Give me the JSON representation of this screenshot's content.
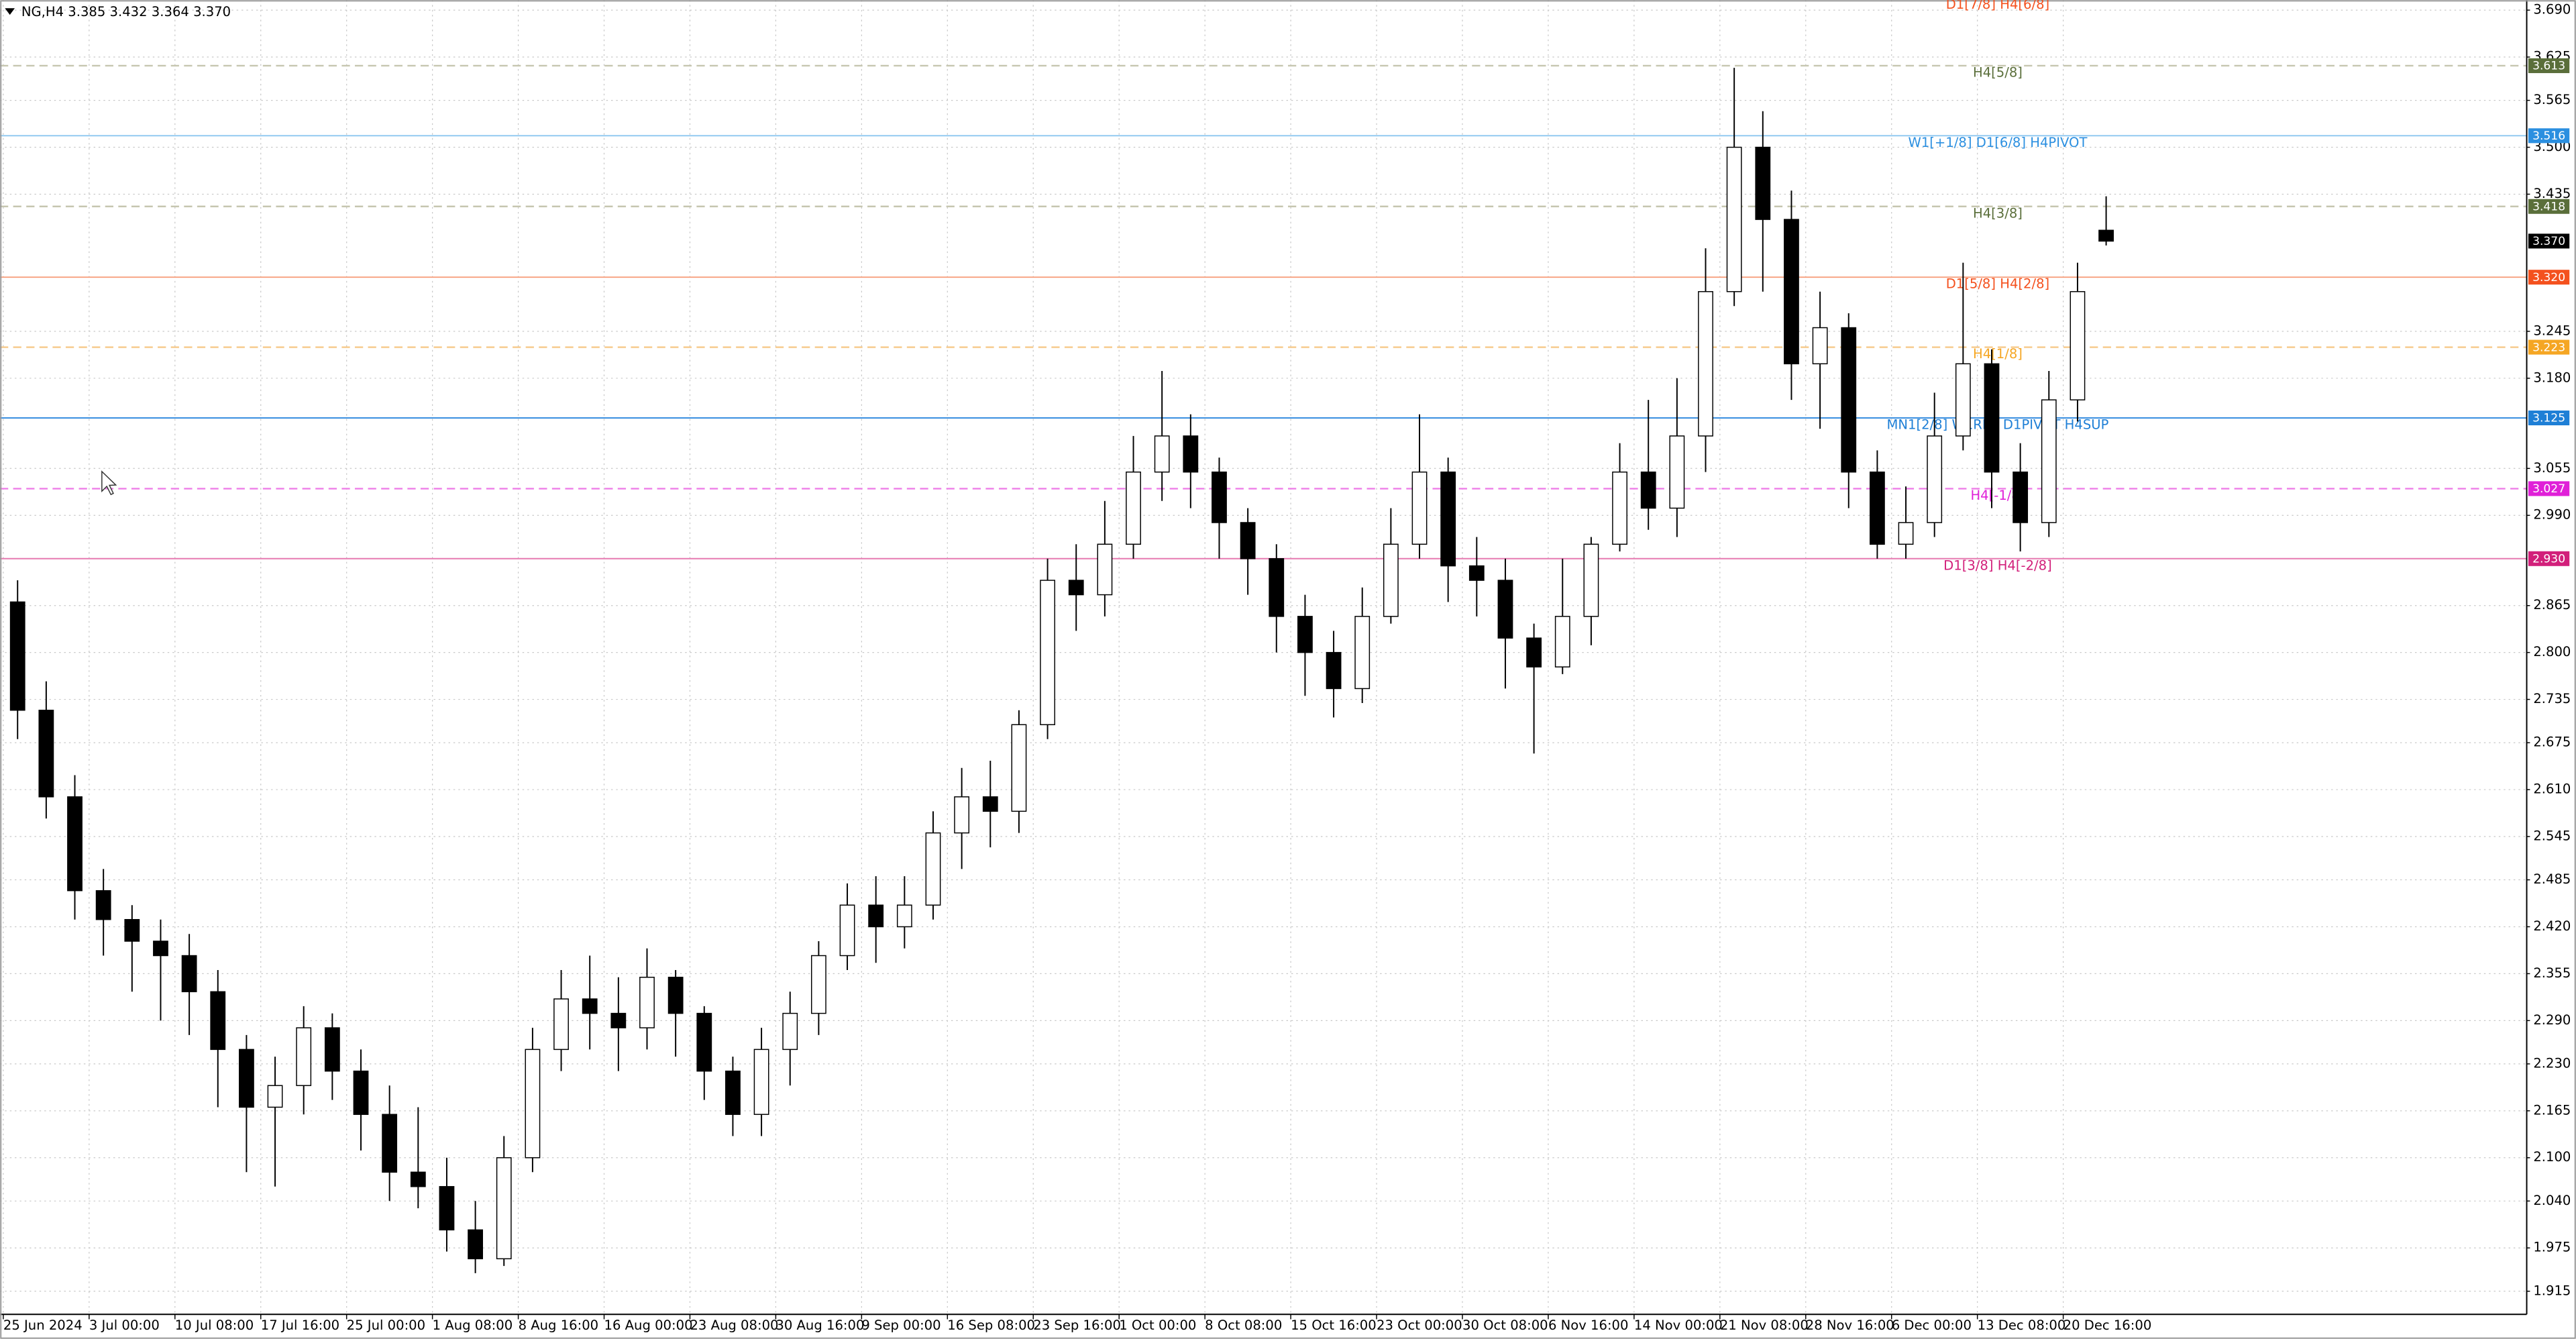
{
  "chart_data": {
    "type": "candlestick",
    "title": "NG,H4  3.385 3.432 3.364 3.370",
    "top_annotation": "D1[7/8] H4[6/8]",
    "up_color": "#ffffff",
    "down_color": "#000000",
    "grid": true,
    "xlim": [
      0,
      88.2
    ],
    "xticks": [
      {
        "value": 0,
        "label": "25 Jun 2024"
      },
      {
        "value": 3,
        "label": "3 Jul 00:00"
      },
      {
        "value": 6,
        "label": "10 Jul 08:00"
      },
      {
        "value": 9,
        "label": "17 Jul 16:00"
      },
      {
        "value": 12,
        "label": "25 Jul 00:00"
      },
      {
        "value": 15,
        "label": "1 Aug 08:00"
      },
      {
        "value": 18,
        "label": "8 Aug 16:00"
      },
      {
        "value": 21,
        "label": "16 Aug 00:00"
      },
      {
        "value": 24,
        "label": "23 Aug 08:00"
      },
      {
        "value": 27,
        "label": "30 Aug 16:00"
      },
      {
        "value": 30,
        "label": "9 Sep 00:00"
      },
      {
        "value": 33,
        "label": "16 Sep 08:00"
      },
      {
        "value": 36,
        "label": "23 Sep 16:00"
      },
      {
        "value": 39,
        "label": "1 Oct 00:00"
      },
      {
        "value": 42,
        "label": "8 Oct 08:00"
      },
      {
        "value": 45,
        "label": "15 Oct 16:00"
      },
      {
        "value": 48,
        "label": "23 Oct 00:00"
      },
      {
        "value": 51,
        "label": "30 Oct 08:00"
      },
      {
        "value": 54,
        "label": "6 Nov 16:00"
      },
      {
        "value": 57,
        "label": "14 Nov 00:00"
      },
      {
        "value": 60,
        "label": "21 Nov 08:00"
      },
      {
        "value": 63,
        "label": "28 Nov 16:00"
      },
      {
        "value": 66,
        "label": "6 Dec 00:00"
      },
      {
        "value": 69,
        "label": "13 Dec 08:00"
      },
      {
        "value": 72,
        "label": "20 Dec 16:00"
      }
    ],
    "ylim": [
      1.883,
      3.704
    ],
    "yticks": [
      {
        "value": 3.69,
        "label": "3.690"
      },
      3.625,
      3.565,
      {
        "value": 3.5,
        "label": "3.500"
      },
      3.435,
      3.245,
      {
        "value": 3.18,
        "label": "3.180"
      },
      3.055,
      {
        "value": 2.99,
        "label": "2.990"
      },
      2.865,
      {
        "value": 2.8,
        "label": "2.800"
      },
      2.735,
      2.675,
      {
        "value": 2.61,
        "label": "2.610"
      },
      2.545,
      2.485,
      {
        "value": 2.42,
        "label": "2.420"
      },
      2.355,
      {
        "value": 2.29,
        "label": "2.290"
      },
      {
        "value": 2.23,
        "label": "2.230"
      },
      2.165,
      {
        "value": 2.1,
        "label": "2.100"
      },
      {
        "value": 2.04,
        "label": "2.040"
      },
      1.975,
      1.915
    ],
    "open": [
      2.87,
      2.72,
      2.6,
      2.47,
      2.43,
      2.4,
      2.38,
      2.33,
      2.25,
      2.17,
      2.2,
      2.28,
      2.22,
      2.16,
      2.08,
      2.06,
      2.0,
      1.96,
      2.1,
      2.25,
      2.32,
      2.3,
      2.28,
      2.35,
      2.3,
      2.22,
      2.16,
      2.25,
      2.3,
      2.38,
      2.45,
      2.42,
      2.45,
      2.55,
      2.6,
      2.58,
      2.7,
      2.9,
      2.88,
      2.95,
      3.05,
      3.1,
      3.05,
      2.98,
      2.93,
      2.85,
      2.8,
      2.75,
      2.85,
      2.95,
      3.05,
      2.92,
      2.9,
      2.82,
      2.78,
      2.85,
      2.95,
      3.05,
      3.0,
      3.1,
      3.3,
      3.5,
      3.4,
      3.2,
      3.25,
      3.05,
      2.95,
      2.98,
      3.1,
      3.2,
      3.05,
      2.98,
      3.15,
      3.385
    ],
    "high": [
      2.9,
      2.76,
      2.63,
      2.5,
      2.45,
      2.43,
      2.41,
      2.36,
      2.27,
      2.24,
      2.31,
      2.3,
      2.25,
      2.2,
      2.17,
      2.1,
      2.04,
      2.13,
      2.28,
      2.36,
      2.38,
      2.35,
      2.39,
      2.36,
      2.31,
      2.24,
      2.28,
      2.33,
      2.4,
      2.48,
      2.49,
      2.49,
      2.58,
      2.64,
      2.65,
      2.72,
      2.93,
      2.95,
      3.01,
      3.1,
      3.19,
      3.13,
      3.07,
      3.0,
      2.95,
      2.88,
      2.83,
      2.89,
      3.0,
      3.13,
      3.07,
      2.96,
      2.93,
      2.84,
      2.93,
      2.96,
      3.09,
      3.15,
      3.18,
      3.36,
      3.61,
      3.55,
      3.44,
      3.3,
      3.27,
      3.08,
      3.03,
      3.16,
      3.34,
      3.22,
      3.09,
      3.19,
      3.34,
      3.432
    ],
    "low": [
      2.68,
      2.57,
      2.43,
      2.38,
      2.33,
      2.29,
      2.27,
      2.17,
      2.08,
      2.06,
      2.16,
      2.18,
      2.11,
      2.04,
      2.03,
      1.97,
      1.94,
      1.95,
      2.08,
      2.22,
      2.25,
      2.22,
      2.25,
      2.24,
      2.18,
      2.13,
      2.13,
      2.2,
      2.27,
      2.36,
      2.37,
      2.39,
      2.43,
      2.5,
      2.53,
      2.55,
      2.68,
      2.83,
      2.85,
      2.93,
      3.01,
      3.0,
      2.93,
      2.88,
      2.8,
      2.74,
      2.71,
      2.73,
      2.84,
      2.93,
      2.87,
      2.85,
      2.75,
      2.66,
      2.77,
      2.81,
      2.94,
      2.97,
      2.96,
      3.05,
      3.28,
      3.3,
      3.15,
      3.11,
      3.0,
      2.93,
      2.93,
      2.96,
      3.08,
      3.0,
      2.94,
      2.96,
      3.12,
      3.364
    ],
    "close": [
      2.72,
      2.6,
      2.47,
      2.43,
      2.4,
      2.38,
      2.33,
      2.25,
      2.17,
      2.2,
      2.28,
      2.22,
      2.16,
      2.08,
      2.06,
      2.0,
      1.96,
      2.1,
      2.25,
      2.32,
      2.3,
      2.28,
      2.35,
      2.3,
      2.22,
      2.16,
      2.25,
      2.3,
      2.38,
      2.45,
      2.42,
      2.45,
      2.55,
      2.6,
      2.58,
      2.7,
      2.9,
      2.88,
      2.95,
      3.05,
      3.1,
      3.05,
      2.98,
      2.93,
      2.85,
      2.8,
      2.75,
      2.85,
      2.95,
      3.05,
      2.92,
      2.9,
      2.82,
      2.78,
      2.85,
      2.95,
      3.05,
      3.0,
      3.1,
      3.3,
      3.5,
      3.4,
      3.2,
      3.25,
      3.05,
      2.95,
      2.98,
      3.1,
      3.2,
      3.05,
      2.98,
      3.15,
      3.3,
      3.37
    ],
    "levels": {
      "names": [
        "H4[5/8]",
        "W1[+1/8] D1[6/8] H4PIVOT",
        "H4[3/8]",
        "D1[5/8] H4[2/8]",
        "H4[1/8]",
        "MN1[2/8] W1RES D1PIVOT H4SUP",
        "H4[-1/8]",
        "D1[3/8] H4[-2/8]"
      ],
      "values": [
        3.613,
        3.516,
        3.418,
        3.32,
        3.223,
        3.125,
        3.027,
        2.93
      ],
      "value_labels": [
        "3.613",
        "3.516",
        "3.418",
        "3.320",
        "3.223",
        "3.125",
        "3.027",
        "2.930"
      ],
      "colors": [
        "#5a6e3a",
        "#2b8fe0",
        "#5a6e3a",
        "#f4511e",
        "#f5a623",
        "#1e7fd6",
        "#e020d8",
        "#d21f7a"
      ],
      "line_colors": [
        "#c6c6b0",
        "#8cc6f0",
        "#c6c6b0",
        "#f7a07e",
        "#f6c98a",
        "#3a8fe0",
        "#ee7fe8",
        "#e67ab0"
      ],
      "dashed": [
        true,
        false,
        true,
        false,
        true,
        false,
        true,
        false
      ]
    },
    "current_price": {
      "value": 3.37,
      "label": "3.370"
    }
  }
}
